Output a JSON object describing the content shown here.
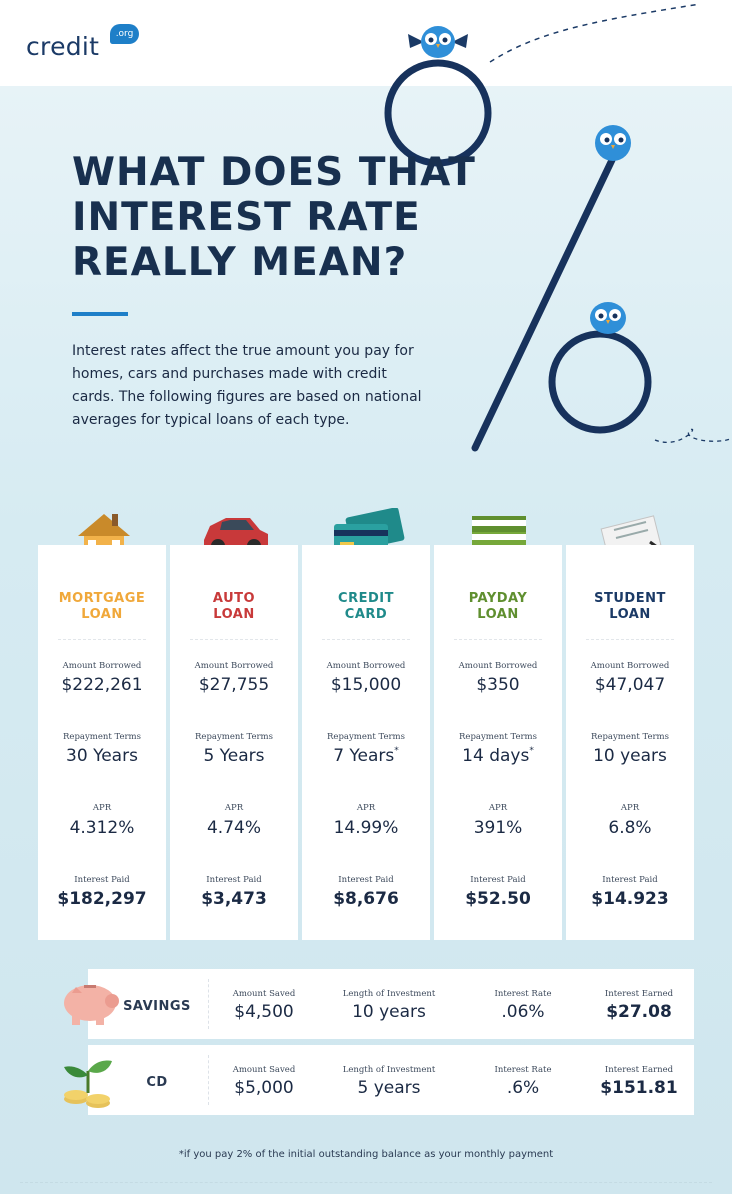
{
  "logo": {
    "brand": "credit",
    "badge": ".org"
  },
  "title": "WHAT DOES THAT INTEREST RATE REALLY MEAN?",
  "intro": "Interest rates affect the true amount you pay for homes, cars and purchases made with credit cards. The following figures are based on national averages for typical loans of each type.",
  "labels": {
    "borrowed": "Amount Borrowed",
    "terms": "Repayment Terms",
    "apr": "APR",
    "interest": "Interest Paid"
  },
  "loans": [
    {
      "line1": "MORTGAGE",
      "line2": "LOAN",
      "color": "#f0a83a",
      "icon": "house-icon",
      "borrowed": "$222,261",
      "terms": "30 Years",
      "terms_note": "",
      "apr": "4.312%",
      "interest": "$182,297"
    },
    {
      "line1": "AUTO",
      "line2": "LOAN",
      "color": "#c83a3a",
      "icon": "car-icon",
      "borrowed": "$27,755",
      "terms": "5 Years",
      "terms_note": "",
      "apr": "4.74%",
      "interest": "$3,473"
    },
    {
      "line1": "CREDIT",
      "line2": "CARD",
      "color": "#1f8a8a",
      "icon": "credit-card-icon",
      "borrowed": "$15,000",
      "terms": "7 Years",
      "terms_note": "*",
      "apr": "14.99%",
      "interest": "$8,676"
    },
    {
      "line1": "PAYDAY",
      "line2": "LOAN",
      "color": "#5f8f2f",
      "icon": "money-stack-icon",
      "borrowed": "$350",
      "terms": "14 days",
      "terms_note": "*",
      "apr": "391%",
      "interest": "$52.50"
    },
    {
      "line1": "STUDENT",
      "line2": "LOAN",
      "color": "#1b3a66",
      "icon": "document-icon",
      "borrowed": "$47,047",
      "terms": "10 years",
      "terms_note": "",
      "apr": "6.8%",
      "interest": "$14.923"
    }
  ],
  "savings_labels": {
    "saved": "Amount Saved",
    "length": "Length of Investment",
    "rate": "Interest Rate",
    "earned": "Interest Earned"
  },
  "savings": [
    {
      "name": "SAVINGS",
      "icon": "piggy-bank-icon",
      "saved": "$4,500",
      "length": "10 years",
      "rate": ".06%",
      "earned": "$27.08"
    },
    {
      "name": "CD",
      "icon": "coins-plant-icon",
      "saved": "$5,000",
      "length": "5 years",
      "rate": ".6%",
      "earned": "$151.81"
    }
  ],
  "footnote": "*if you pay 2% of the initial outstanding balance as your monthly payment"
}
